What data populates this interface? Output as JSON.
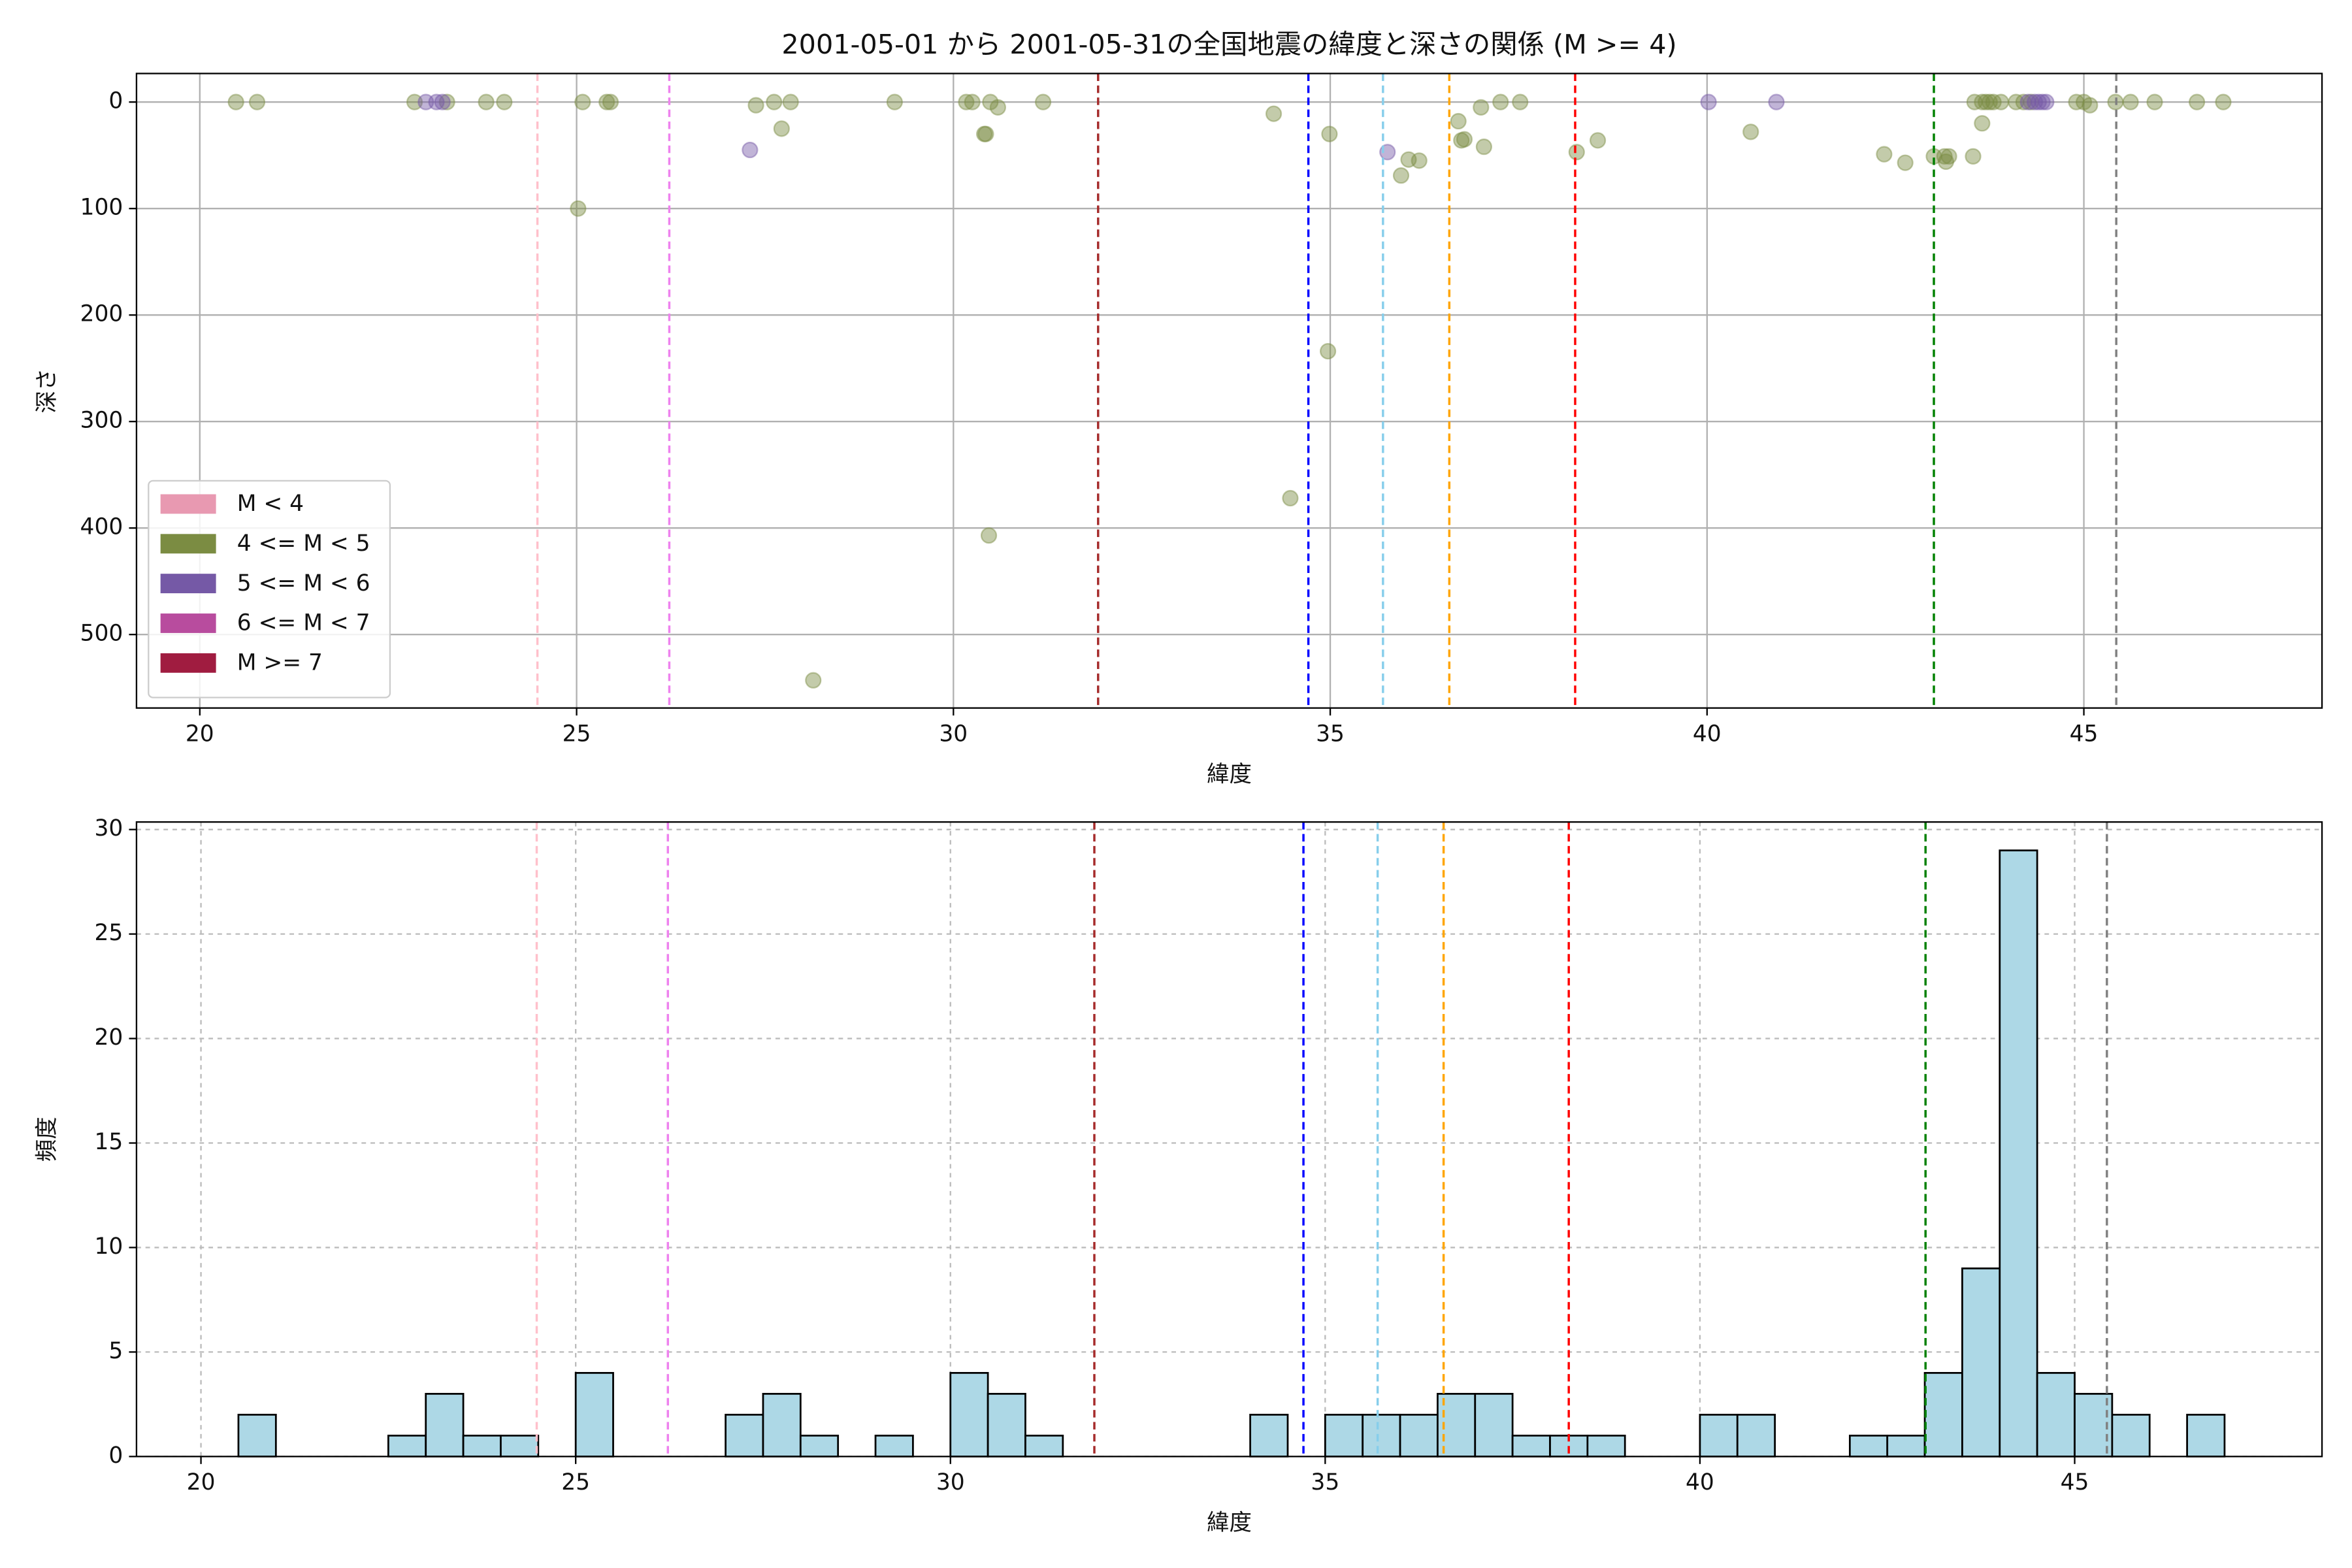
{
  "chart_data": [
    {
      "type": "scatter",
      "title": "2001-05-01 から 2001-05-31の全国地震の緯度と深さの関係 (M >= 4)",
      "x_label": "緯度",
      "y_label": "深さ",
      "xlim": [
        19.16,
        48.16
      ],
      "xticks": [
        20,
        25,
        30,
        35,
        40,
        45
      ],
      "ylim": [
        569,
        -26.8
      ],
      "yticks": [
        0,
        100,
        200,
        300,
        400,
        500
      ],
      "grid": true,
      "legend": "lower left",
      "point_alpha": 0.45,
      "series": [
        {
          "name": "M < 4",
          "color": "#e899b1",
          "x": [],
          "values": []
        },
        {
          "name": "4 <= M < 5",
          "color": "#7b8c42",
          "x": [
            20.48,
            20.76,
            22.85,
            23.28,
            23.8,
            24.04,
            25.02,
            25.08,
            25.4,
            25.45,
            27.38,
            27.62,
            27.84,
            27.72,
            28.14,
            29.22,
            30.17,
            30.25,
            30.49,
            30.59,
            30.41,
            30.43,
            30.47,
            31.19,
            34.25,
            34.47,
            34.99,
            34.97,
            36.04,
            35.94,
            36.18,
            36.7,
            36.74,
            36.78,
            37.0,
            37.04,
            37.26,
            37.52,
            38.27,
            38.55,
            40.58,
            42.35,
            42.63,
            43.01,
            43.15,
            43.17,
            43.21,
            43.53,
            43.65,
            43.55,
            43.65,
            43.7,
            43.75,
            43.8,
            43.9,
            44.1,
            44.2,
            44.3,
            44.9,
            45.0,
            45.08,
            45.42,
            45.62,
            45.94,
            46.5,
            46.85
          ],
          "values": [
            0,
            0,
            0,
            0,
            0,
            0,
            100,
            0,
            0,
            0,
            3,
            0,
            0,
            25,
            543,
            0,
            0,
            0,
            0,
            5,
            30,
            30,
            407,
            0,
            11,
            372,
            30,
            234,
            54,
            69,
            55,
            18,
            36,
            35,
            5,
            42,
            0,
            0,
            47,
            36,
            28,
            49,
            57,
            51,
            51,
            56,
            51,
            51,
            20,
            0,
            0,
            0,
            0,
            0,
            0,
            0,
            0,
            0,
            0,
            0,
            3,
            0,
            0,
            0,
            0,
            0
          ]
        },
        {
          "name": "5 <= M < 6",
          "color": "#7559a6",
          "x": [
            23.0,
            23.14,
            23.22,
            27.3,
            35.76,
            40.02,
            40.92,
            44.26,
            44.35,
            44.4,
            44.45,
            44.5
          ],
          "values": [
            0,
            0,
            0,
            45,
            47,
            0,
            0,
            0,
            0,
            0,
            0,
            0
          ]
        },
        {
          "name": "6 <= M < 7",
          "color": "#b84c9e",
          "x": [],
          "values": []
        },
        {
          "name": "M >= 7",
          "color": "#a01c40",
          "x": [],
          "values": []
        }
      ],
      "vlines": [
        {
          "x": 24.48,
          "color": "pink"
        },
        {
          "x": 26.23,
          "color": "violet"
        },
        {
          "x": 31.92,
          "color": "brown"
        },
        {
          "x": 34.71,
          "color": "blue"
        },
        {
          "x": 35.7,
          "color": "skyblue"
        },
        {
          "x": 36.58,
          "color": "orange"
        },
        {
          "x": 38.25,
          "color": "red"
        },
        {
          "x": 43.01,
          "color": "green"
        },
        {
          "x": 45.43,
          "color": "gray"
        }
      ]
    },
    {
      "type": "histogram",
      "x_label": "緯度",
      "y_label": "頻度",
      "xlim": [
        19.14,
        48.3
      ],
      "xticks": [
        20,
        25,
        30,
        35,
        40,
        45
      ],
      "ylim": [
        0,
        30.36
      ],
      "yticks": [
        0,
        5,
        10,
        15,
        20,
        25,
        30
      ],
      "grid": true,
      "color": "#add8e6",
      "bins": [
        20.5,
        21,
        21.5,
        22,
        22.5,
        23,
        23.5,
        24,
        24.5,
        25,
        25.5,
        26,
        26.5,
        27,
        27.5,
        28,
        28.5,
        29,
        29.5,
        30,
        30.5,
        31,
        31.5,
        32,
        32.5,
        33,
        33.5,
        34,
        34.5,
        35,
        35.5,
        36,
        36.5,
        37,
        37.5,
        38,
        38.5,
        39,
        39.5,
        40,
        40.5,
        41,
        41.5,
        42,
        42.5,
        43,
        43.5,
        44,
        44.5,
        45,
        45.5,
        46,
        46.5,
        47
      ],
      "values": [
        2,
        0,
        0,
        0,
        1,
        3,
        1,
        1,
        0,
        4,
        0,
        0,
        0,
        2,
        3,
        1,
        0,
        1,
        0,
        4,
        3,
        1,
        0,
        0,
        0,
        0,
        0,
        2,
        0,
        2,
        2,
        2,
        3,
        3,
        1,
        1,
        1,
        0,
        0,
        2,
        2,
        0,
        0,
        1,
        1,
        4,
        9,
        29,
        4,
        3,
        2,
        0,
        2
      ],
      "vlines": [
        {
          "x": 24.48,
          "color": "pink"
        },
        {
          "x": 26.23,
          "color": "violet"
        },
        {
          "x": 31.92,
          "color": "brown"
        },
        {
          "x": 34.71,
          "color": "blue"
        },
        {
          "x": 35.7,
          "color": "skyblue"
        },
        {
          "x": 36.58,
          "color": "orange"
        },
        {
          "x": 38.25,
          "color": "red"
        },
        {
          "x": 43.01,
          "color": "green"
        },
        {
          "x": 45.43,
          "color": "gray"
        }
      ]
    }
  ]
}
